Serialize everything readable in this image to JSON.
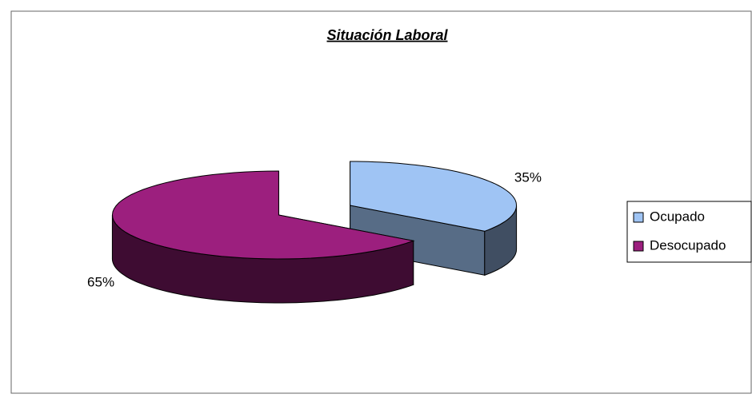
{
  "chart_data": {
    "type": "pie",
    "title": "Situación Laboral",
    "categories": [
      "Ocupado",
      "Desocupado"
    ],
    "values": [
      35,
      65
    ],
    "value_labels": [
      "35%",
      "65%"
    ],
    "colors": [
      "#9fc4f4",
      "#9c1f7e"
    ],
    "legend": "right"
  }
}
